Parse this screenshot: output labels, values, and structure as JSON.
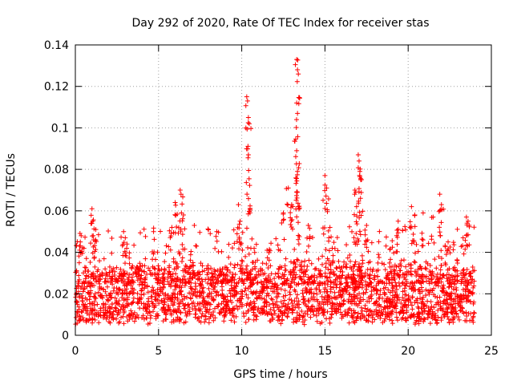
{
  "chart_data": {
    "type": "scatter",
    "title": "Day 292 of 2020, Rate Of TEC Index for receiver stas",
    "xlabel": "GPS time / hours",
    "ylabel": "ROTI / TECUs",
    "xlim": [
      0,
      25
    ],
    "ylim": [
      0,
      0.14
    ],
    "xticks": [
      0,
      5,
      10,
      15,
      20,
      25
    ],
    "yticks": [
      0,
      0.02,
      0.04,
      0.06,
      0.08,
      0.1,
      0.12,
      0.14
    ],
    "x_tick_labels": [
      "0",
      "5",
      "10",
      "15",
      "20",
      "25"
    ],
    "y_tick_labels": [
      "0",
      "0.02",
      "0.04",
      "0.06",
      "0.08",
      "0.1",
      "0.12",
      "0.14"
    ],
    "grid": true,
    "marker": "plus",
    "color": "#ff0000",
    "series": [
      {
        "name": "ROTI",
        "x_range_hours": [
          0,
          24
        ],
        "baseline_band": [
          0.005,
          0.03
        ],
        "notable_points": [
          {
            "x": 0.3,
            "y": 0.045
          },
          {
            "x": 0.35,
            "y": 0.048
          },
          {
            "x": 1.0,
            "y": 0.061
          },
          {
            "x": 1.05,
            "y": 0.055
          },
          {
            "x": 1.1,
            "y": 0.046
          },
          {
            "x": 2.9,
            "y": 0.05
          },
          {
            "x": 3.0,
            "y": 0.047
          },
          {
            "x": 4.7,
            "y": 0.05
          },
          {
            "x": 5.8,
            "y": 0.052
          },
          {
            "x": 6.0,
            "y": 0.064
          },
          {
            "x": 6.3,
            "y": 0.07
          },
          {
            "x": 6.35,
            "y": 0.068
          },
          {
            "x": 6.5,
            "y": 0.058
          },
          {
            "x": 8.5,
            "y": 0.05
          },
          {
            "x": 9.8,
            "y": 0.063
          },
          {
            "x": 9.9,
            "y": 0.055
          },
          {
            "x": 10.3,
            "y": 0.115
          },
          {
            "x": 10.35,
            "y": 0.113
          },
          {
            "x": 10.4,
            "y": 0.105
          },
          {
            "x": 10.45,
            "y": 0.102
          },
          {
            "x": 10.4,
            "y": 0.087
          },
          {
            "x": 10.5,
            "y": 0.061
          },
          {
            "x": 12.5,
            "y": 0.059
          },
          {
            "x": 12.8,
            "y": 0.071
          },
          {
            "x": 13.0,
            "y": 0.063
          },
          {
            "x": 13.3,
            "y": 0.133
          },
          {
            "x": 13.35,
            "y": 0.128
          },
          {
            "x": 13.4,
            "y": 0.126
          },
          {
            "x": 13.3,
            "y": 0.112
          },
          {
            "x": 13.35,
            "y": 0.107
          },
          {
            "x": 13.3,
            "y": 0.089
          },
          {
            "x": 13.35,
            "y": 0.079
          },
          {
            "x": 13.3,
            "y": 0.069
          },
          {
            "x": 13.4,
            "y": 0.062
          },
          {
            "x": 14.0,
            "y": 0.053
          },
          {
            "x": 15.0,
            "y": 0.077
          },
          {
            "x": 15.1,
            "y": 0.071
          },
          {
            "x": 15.3,
            "y": 0.052
          },
          {
            "x": 16.8,
            "y": 0.07
          },
          {
            "x": 16.9,
            "y": 0.062
          },
          {
            "x": 17.0,
            "y": 0.087
          },
          {
            "x": 17.05,
            "y": 0.084
          },
          {
            "x": 17.1,
            "y": 0.079
          },
          {
            "x": 17.15,
            "y": 0.075
          },
          {
            "x": 17.5,
            "y": 0.053
          },
          {
            "x": 19.4,
            "y": 0.055
          },
          {
            "x": 20.2,
            "y": 0.062
          },
          {
            "x": 20.4,
            "y": 0.058
          },
          {
            "x": 20.9,
            "y": 0.059
          },
          {
            "x": 21.5,
            "y": 0.057
          },
          {
            "x": 21.9,
            "y": 0.068
          },
          {
            "x": 22.0,
            "y": 0.063
          },
          {
            "x": 22.4,
            "y": 0.045
          },
          {
            "x": 23.5,
            "y": 0.057
          },
          {
            "x": 23.6,
            "y": 0.055
          },
          {
            "x": 23.3,
            "y": 0.047
          }
        ]
      }
    ]
  }
}
